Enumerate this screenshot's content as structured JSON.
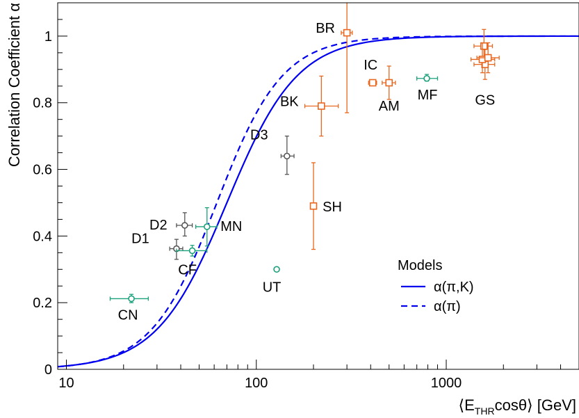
{
  "chart_data": {
    "type": "scatter",
    "title": "",
    "xlabel_parts": {
      "open": "⟨E",
      "sub": "THR",
      "rest": "cosθ⟩ [GeV]"
    },
    "ylabel": "Correlation Coefficient α",
    "xscale": "log",
    "xlim": [
      9,
      5000
    ],
    "ylim": [
      0,
      1.1
    ],
    "x_ticks": [
      {
        "v": 10,
        "label": "10"
      },
      {
        "v": 100,
        "label": "100"
      },
      {
        "v": 1000,
        "label": "1000"
      }
    ],
    "y_ticks": [
      {
        "v": 0,
        "label": "0"
      },
      {
        "v": 0.2,
        "label": "0.2"
      },
      {
        "v": 0.4,
        "label": "0.4"
      },
      {
        "v": 0.6,
        "label": "0.6"
      },
      {
        "v": 0.8,
        "label": "0.8"
      },
      {
        "v": 1.0,
        "label": "1"
      }
    ],
    "grid": false,
    "legend": {
      "title": "Models",
      "placement": "bottom-right",
      "entries": [
        {
          "label": "α(π,K)",
          "style": "solid"
        },
        {
          "label": "α(π)",
          "style": "dashed"
        }
      ]
    },
    "models": [
      {
        "label": "α(π,K)",
        "style": "solid",
        "color": "#0000ee",
        "x0": 70,
        "w": 0.37,
        "ymax": 1.0
      },
      {
        "label": "α(π)",
        "style": "dashed",
        "color": "#0000ee",
        "x0": 62,
        "w": 0.345,
        "ymax": 1.0
      }
    ],
    "groups": [
      {
        "name": "orange",
        "color": "#e8661e",
        "marker": "square"
      },
      {
        "name": "green",
        "color": "#1aa07a",
        "marker": "circle"
      },
      {
        "name": "gray",
        "color": "#555555",
        "marker": "circle"
      }
    ],
    "points": [
      {
        "label": "CN",
        "group": "green",
        "x": 22,
        "y": 0.212,
        "xerr": [
          17,
          27
        ],
        "yerr": [
          0.2,
          0.225
        ],
        "label_dx": -5,
        "label_dy": 30
      },
      {
        "label": "D1",
        "group": "gray",
        "x": 38,
        "y": 0.362,
        "xerr": [
          35,
          41
        ],
        "yerr": [
          0.33,
          0.39
        ],
        "label_dx": -52,
        "label_dy": -8
      },
      {
        "label": "CF",
        "group": "green",
        "x": 46,
        "y": 0.356,
        "xerr": [
          38,
          55
        ],
        "yerr": [
          0.34,
          0.372
        ],
        "label_dx": -7,
        "label_dy": 34
      },
      {
        "label": "D2",
        "group": "gray",
        "x": 42,
        "y": 0.432,
        "xerr": [
          38,
          46
        ],
        "yerr": [
          0.4,
          0.47
        ],
        "label_dx": -38,
        "label_dy": 6
      },
      {
        "label": "MN",
        "group": "green",
        "x": 55,
        "y": 0.428,
        "xerr": [
          48,
          62
        ],
        "yerr": [
          0.37,
          0.485
        ],
        "label_dx": 35,
        "label_dy": 6
      },
      {
        "label": "UT",
        "group": "green",
        "x": 128,
        "y": 0.3,
        "xerr": null,
        "yerr": null,
        "label_dx": -7,
        "label_dy": 32
      },
      {
        "label": "D3",
        "group": "gray",
        "x": 145,
        "y": 0.64,
        "xerr": [
          135,
          158
        ],
        "yerr": [
          0.585,
          0.7
        ],
        "label_dx": -40,
        "label_dy": -24
      },
      {
        "label": "SH",
        "group": "orange",
        "x": 200,
        "y": 0.49,
        "xerr": null,
        "yerr": [
          0.36,
          0.62
        ],
        "label_dx": 27,
        "label_dy": 8
      },
      {
        "label": "BK",
        "group": "orange",
        "x": 220,
        "y": 0.79,
        "xerr": [
          180,
          270
        ],
        "yerr": [
          0.7,
          0.88
        ],
        "label_dx": -46,
        "label_dy": 0
      },
      {
        "label": "BR",
        "group": "orange",
        "x": 300,
        "y": 1.01,
        "xerr": [
          280,
          320
        ],
        "yerr": [
          0.77,
          1.1
        ],
        "label_dx": -31,
        "label_dy": 0
      },
      {
        "label": "IC",
        "group": "orange",
        "x": 410,
        "y": 0.86,
        "xerr": [
          390,
          430
        ],
        "yerr": null,
        "label_dx": -3,
        "label_dy": -19
      },
      {
        "label": "AM",
        "group": "orange",
        "x": 500,
        "y": 0.86,
        "xerr": [
          460,
          540
        ],
        "yerr": [
          0.81,
          0.91
        ],
        "label_dx": 0,
        "label_dy": 40
      },
      {
        "label": "MF",
        "group": "green",
        "x": 790,
        "y": 0.873,
        "xerr": [
          700,
          900
        ],
        "yerr": [
          0.865,
          0.885
        ],
        "label_dx": 1,
        "label_dy": 30
      },
      {
        "label": "GS",
        "group": "orange",
        "x": 1600,
        "y": 0.915,
        "xerr": [
          1400,
          1800
        ],
        "yerr": [
          0.87,
          0.96
        ],
        "label_dx": 0,
        "label_dy": 58
      },
      {
        "label": "",
        "group": "orange",
        "x": 1580,
        "y": 0.97,
        "xerr": [
          1400,
          1750
        ],
        "yerr": [
          0.93,
          1.02
        ],
        "label_dx": 0,
        "label_dy": 0
      },
      {
        "label": "",
        "group": "orange",
        "x": 1550,
        "y": 0.93,
        "xerr": [
          1350,
          1800
        ],
        "yerr": [
          0.89,
          0.98
        ],
        "label_dx": 0,
        "label_dy": 0
      },
      {
        "label": "",
        "group": "orange",
        "x": 1660,
        "y": 0.935,
        "xerr": [
          1450,
          1900
        ],
        "yerr": [
          0.89,
          0.98
        ],
        "label_dx": 0,
        "label_dy": 0
      }
    ]
  }
}
